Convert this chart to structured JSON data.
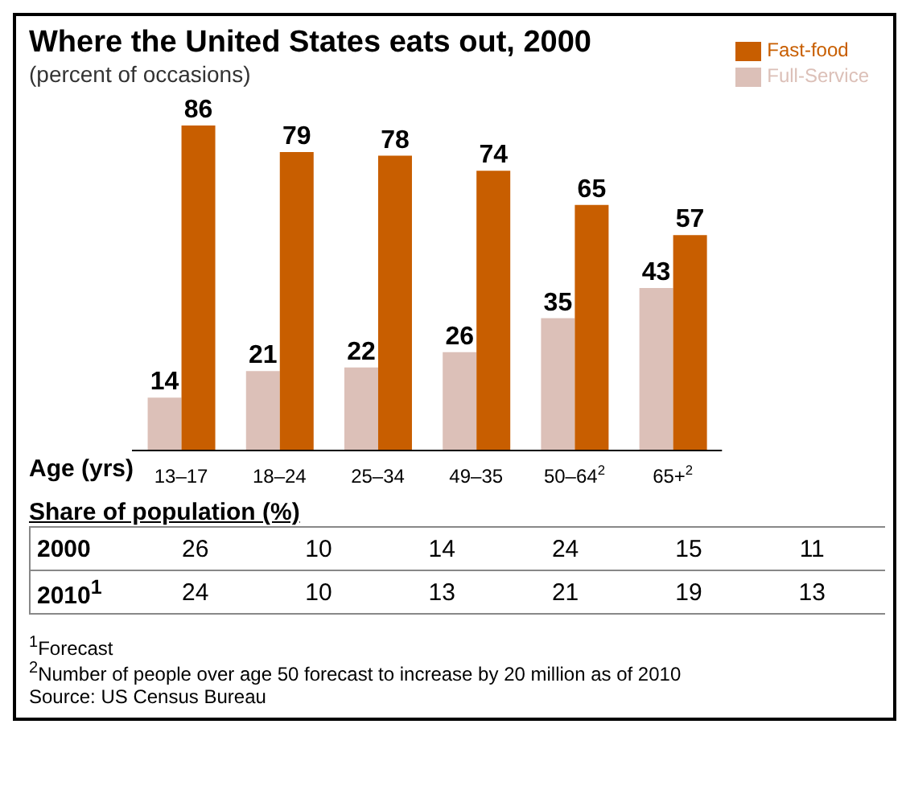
{
  "chart_data": {
    "type": "bar",
    "title": "Where the United States eats out, 2000",
    "subtitle": "(percent of occasions)",
    "xlabel": "Age (yrs)",
    "categories": [
      "13–17",
      "18–24",
      "25–34",
      "49–35",
      "50–64$^{2}$",
      "65+$^{2}$"
    ],
    "series": [
      {
        "name": "Full-Service",
        "color": "#dcc0b8",
        "values": [
          14,
          21,
          22,
          26,
          35,
          43
        ]
      },
      {
        "name": "Fast-food",
        "color": "#c85e00",
        "values": [
          86,
          79,
          78,
          74,
          65,
          57
        ]
      }
    ],
    "data_labels": true,
    "legend": "top right",
    "annotations": [
      "Share of population (%)",
      "2000",
      "26",
      "10",
      "14",
      "24",
      "15",
      "11",
      "2010$^{1}$",
      "24",
      "10",
      "13",
      "21",
      "19",
      "13",
      "$^{1}$Forecast",
      "$^{2}$Number of people over age 50 forecast to increase by 20 million as of 2010",
      "Source: US Census Bureau"
    ]
  }
}
